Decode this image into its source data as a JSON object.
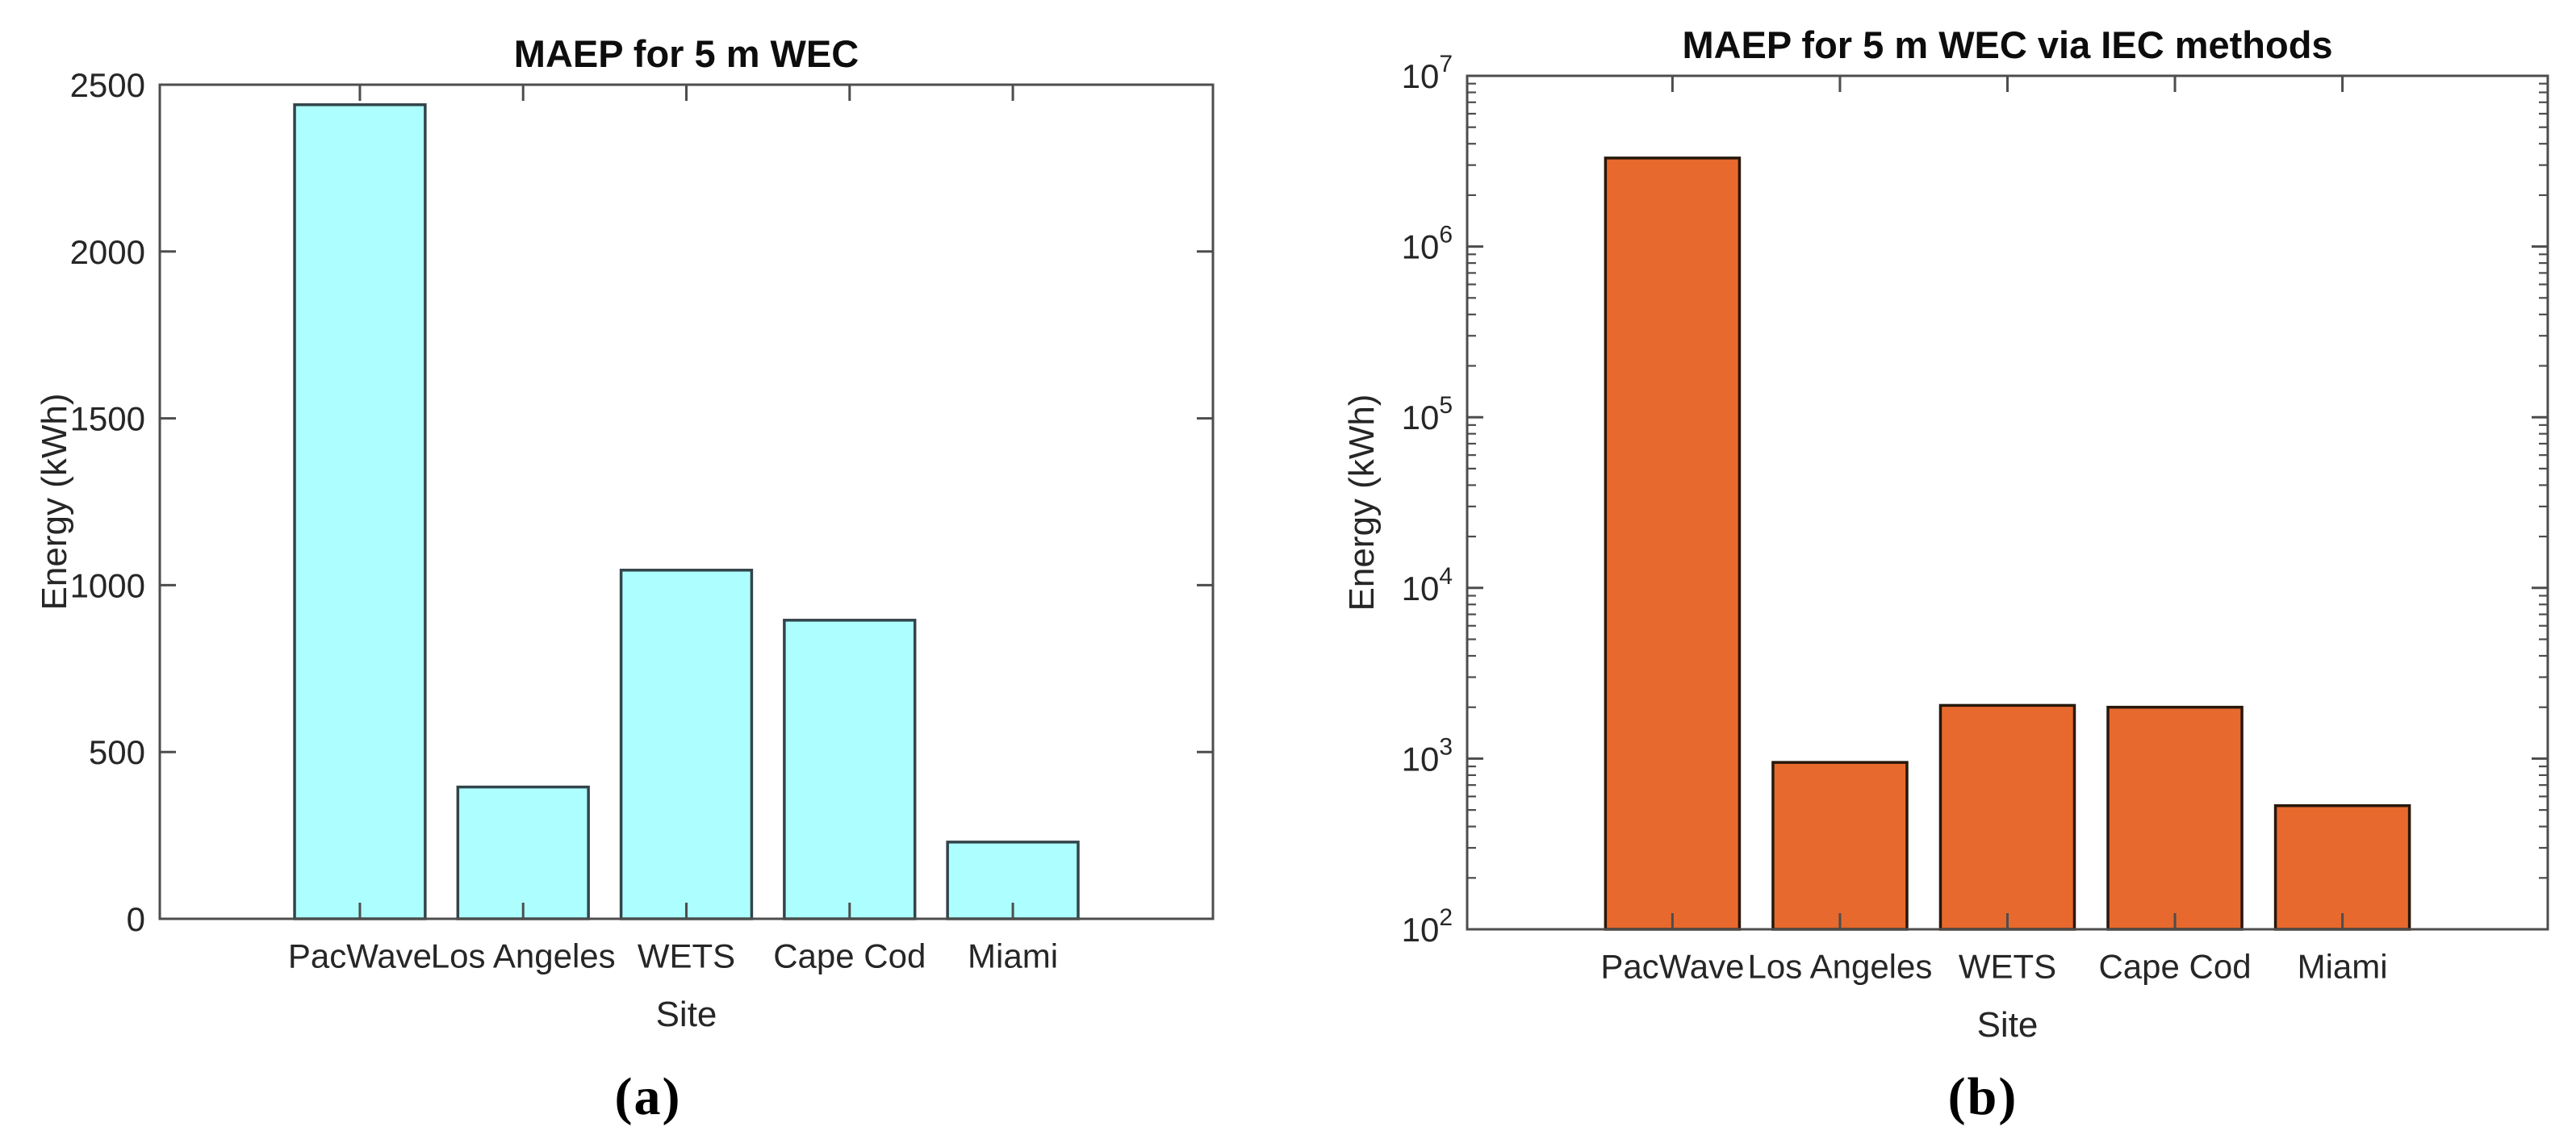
{
  "figure_captions": {
    "a": "(a)",
    "b": "(b)"
  },
  "colors": {
    "background": "#ffffff",
    "axis": "#4d4d4d",
    "tick_text": "#262626",
    "title_text": "#0d0d0d",
    "panel_a_bar_fill": "#ADFFFF",
    "panel_a_bar_edge": "#32444a",
    "panel_b_bar_fill": "#E8692D",
    "panel_b_bar_edge": "#27180c"
  },
  "chart_data": [
    {
      "type": "bar",
      "title": "MAEP for 5 m WEC",
      "xlabel": "Site",
      "ylabel": "Energy (kWh)",
      "categories": [
        "PacWave",
        "Los Angeles",
        "WETS",
        "Cape Cod",
        "Miami"
      ],
      "values": [
        2440,
        395,
        1045,
        895,
        230
      ],
      "yscale": "linear",
      "ylim": [
        0,
        2500
      ],
      "yticks": [
        {
          "value": 0,
          "label": "0"
        },
        {
          "value": 500,
          "label": "500"
        },
        {
          "value": 1000,
          "label": "1000"
        },
        {
          "value": 1500,
          "label": "1500"
        },
        {
          "value": 2000,
          "label": "2000"
        },
        {
          "value": 2500,
          "label": "2500"
        }
      ],
      "grid": false,
      "legend": null,
      "bar_fill": "#ADFFFF",
      "bar_edge": "#32444a"
    },
    {
      "type": "bar",
      "title": "MAEP for 5 m WEC via IEC methods",
      "xlabel": "Site",
      "ylabel": "Energy (kWh)",
      "categories": [
        "PacWave",
        "Los Angeles",
        "WETS",
        "Cape Cod",
        "Miami"
      ],
      "values": [
        3300000,
        950,
        2050,
        2000,
        530
      ],
      "yscale": "log",
      "ylim": [
        100,
        10000000
      ],
      "yticks": [
        {
          "value": 100,
          "base": "10",
          "exp": "2"
        },
        {
          "value": 1000,
          "base": "10",
          "exp": "3"
        },
        {
          "value": 10000,
          "base": "10",
          "exp": "4"
        },
        {
          "value": 100000,
          "base": "10",
          "exp": "5"
        },
        {
          "value": 1000000,
          "base": "10",
          "exp": "6"
        },
        {
          "value": 10000000,
          "base": "10",
          "exp": "7"
        }
      ],
      "grid": false,
      "legend": null,
      "bar_fill": "#E8692D",
      "bar_edge": "#27180c"
    }
  ]
}
